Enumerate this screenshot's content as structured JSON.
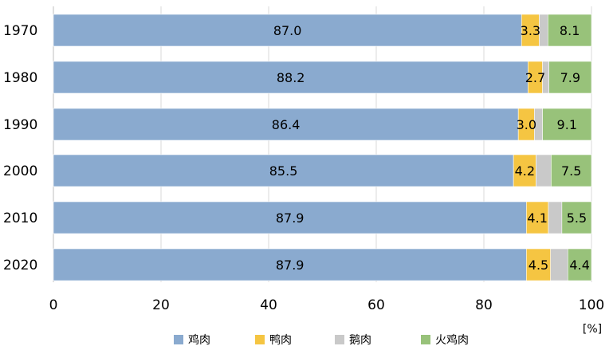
{
  "chart_data": {
    "type": "bar",
    "orientation": "horizontal",
    "stacked": true,
    "categories": [
      "1970",
      "1980",
      "1990",
      "2000",
      "2010",
      "2020"
    ],
    "series": [
      {
        "name": "鸡肉",
        "color": "#8aaacf",
        "values": [
          87.0,
          88.2,
          86.4,
          85.5,
          87.9,
          87.9
        ],
        "labels": [
          "87.0",
          "88.2",
          "86.4",
          "85.5",
          "87.9",
          "87.9"
        ]
      },
      {
        "name": "鸭肉",
        "color": "#f5c542",
        "values": [
          3.3,
          2.7,
          3.0,
          4.2,
          4.1,
          4.5
        ],
        "labels": [
          "3.3",
          "2.7",
          "3.0",
          "4.2",
          "4.1",
          "4.5"
        ]
      },
      {
        "name": "鹅肉",
        "color": "#c9c9c9",
        "values": [
          1.6,
          1.2,
          1.5,
          2.8,
          2.5,
          3.2
        ],
        "labels": [
          "",
          "",
          "",
          "",
          "",
          ""
        ]
      },
      {
        "name": "火鸡肉",
        "color": "#98c27a",
        "values": [
          8.1,
          7.9,
          9.1,
          7.5,
          5.5,
          4.4
        ],
        "labels": [
          "8.1",
          "7.9",
          "9.1",
          "7.5",
          "5.5",
          "4.4"
        ]
      }
    ],
    "xlim": [
      0,
      100
    ],
    "xticks": [
      "0",
      "20",
      "40",
      "60",
      "80",
      "100"
    ],
    "unit": "[%]",
    "legend_position": "bottom",
    "grid": true
  }
}
